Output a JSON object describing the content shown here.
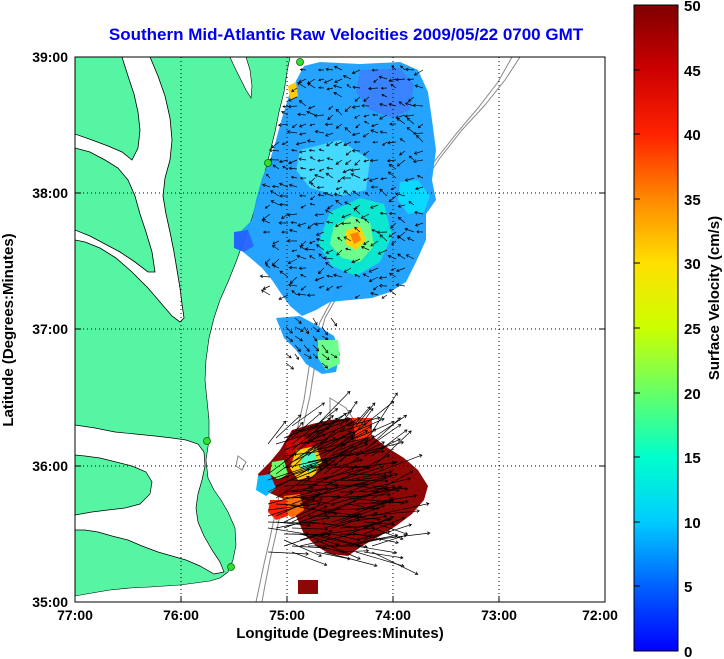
{
  "title": "Southern Mid-Atlantic Raw Velocities 2009/05/22 0700 GMT",
  "x_axis": {
    "label": "Longitude (Degrees:Minutes)",
    "ticks": [
      "77:00",
      "76:00",
      "75:00",
      "74:00",
      "73:00",
      "72:00"
    ]
  },
  "y_axis": {
    "label": "Latitude (Degrees:Minutes)",
    "ticks": [
      "39:00",
      "38:00",
      "37:00",
      "36:00",
      "35:00"
    ]
  },
  "colorbar": {
    "label": "Surface Velocity (cm/s)",
    "ticks": [
      "50",
      "45",
      "40",
      "35",
      "30",
      "25",
      "20",
      "15",
      "10",
      "5",
      "0"
    ],
    "range": [
      0,
      50
    ],
    "colormap": "jet"
  },
  "colors": {
    "land": "#55f5a3",
    "water": "#ffffff",
    "title": "#0000ee",
    "station_marker": "#33dd33"
  },
  "map": {
    "lon_range_deg": [
      -77,
      -72
    ],
    "lat_range_deg": [
      35,
      39
    ],
    "grid": true,
    "features": [
      "land-mass",
      "bathymetry-contours",
      "chesapeake-bay",
      "pamlico-sound",
      "velocity-field-north",
      "velocity-field-south",
      "hfr-stations"
    ]
  }
}
